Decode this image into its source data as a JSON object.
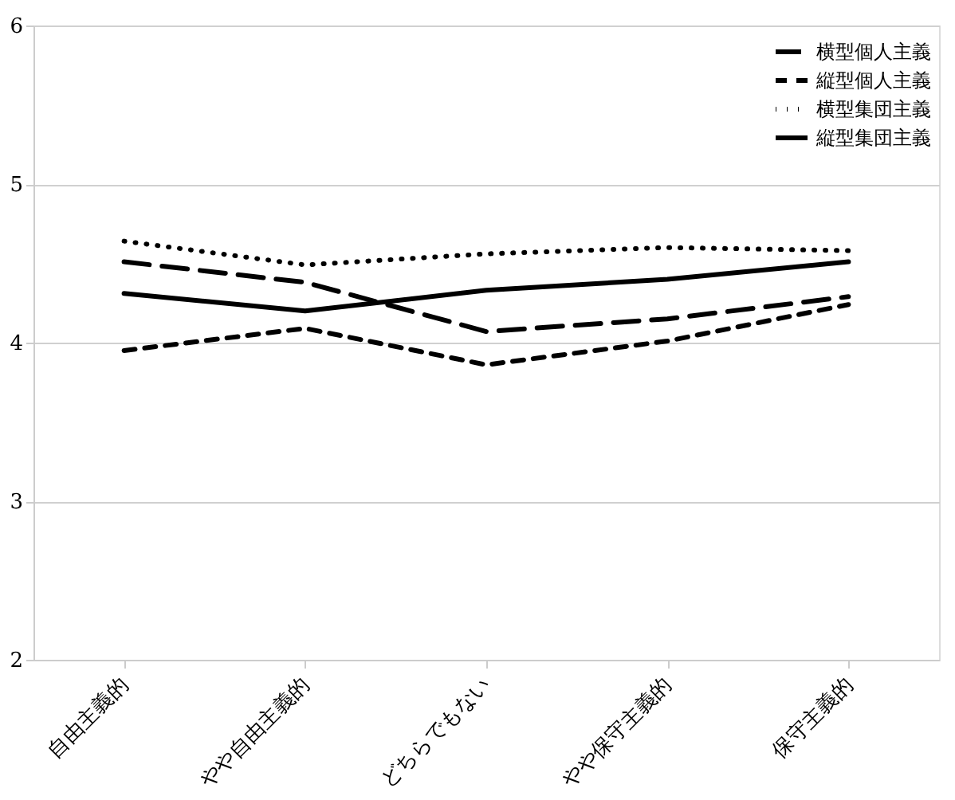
{
  "chart_data": {
    "type": "line",
    "categories": [
      "自由主義的",
      "やや自由主義的",
      "どちらでもない",
      "やや保守主義的",
      "保守主義的"
    ],
    "series": [
      {
        "name": "横型個人主義",
        "color": "#000000",
        "line_style": "longdash",
        "values": [
          4.51,
          4.38,
          4.07,
          4.15,
          4.29
        ]
      },
      {
        "name": "縦型個人主義",
        "color": "#000000",
        "line_style": "dashed",
        "values": [
          3.95,
          4.09,
          3.86,
          4.01,
          4.24
        ]
      },
      {
        "name": "横型集団主義",
        "color": "#000000",
        "line_style": "dotted",
        "values": [
          4.64,
          4.49,
          4.56,
          4.6,
          4.58
        ]
      },
      {
        "name": "縦型集団主義",
        "color": "#000000",
        "line_style": "solid",
        "values": [
          4.31,
          4.2,
          4.33,
          4.4,
          4.51
        ]
      }
    ],
    "ylim": [
      2,
      6
    ],
    "yticks": [
      2,
      3,
      4,
      5,
      6
    ],
    "grid": "y",
    "legend": "top right",
    "marker": "none"
  }
}
